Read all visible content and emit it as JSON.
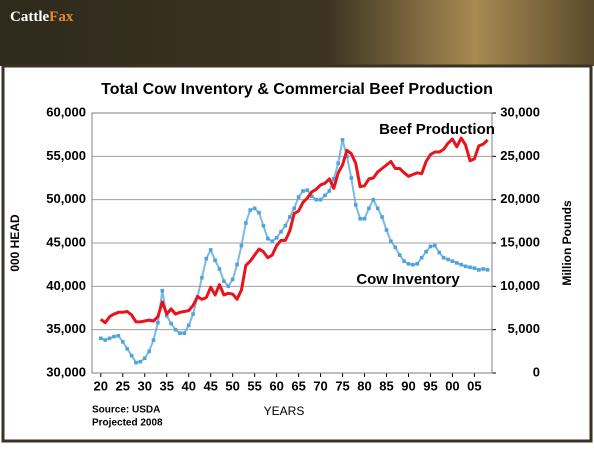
{
  "header": {
    "logo_main": "Cattle",
    "logo_accent": "Fax"
  },
  "chart_data": {
    "type": "line",
    "title": "Total Cow Inventory & Commercial Beef Production",
    "x_label": "YEARS",
    "y_label": "000 HEAD",
    "y2_label": "Million Pounds",
    "annotations": [
      "Source: USDA",
      "Projected 2008"
    ],
    "x": [
      1920,
      1921,
      1922,
      1923,
      1924,
      1925,
      1926,
      1927,
      1928,
      1929,
      1930,
      1931,
      1932,
      1933,
      1934,
      1935,
      1936,
      1937,
      1938,
      1939,
      1940,
      1941,
      1942,
      1943,
      1944,
      1945,
      1946,
      1947,
      1948,
      1949,
      1950,
      1951,
      1952,
      1953,
      1954,
      1955,
      1956,
      1957,
      1958,
      1959,
      1960,
      1961,
      1962,
      1963,
      1964,
      1965,
      1966,
      1967,
      1968,
      1969,
      1970,
      1971,
      1972,
      1973,
      1974,
      1975,
      1976,
      1977,
      1978,
      1979,
      1980,
      1981,
      1982,
      1983,
      1984,
      1985,
      1986,
      1987,
      1988,
      1989,
      1990,
      1991,
      1992,
      1993,
      1994,
      1995,
      1996,
      1997,
      1998,
      1999,
      2000,
      2001,
      2002,
      2003,
      2004,
      2005,
      2006,
      2007,
      2008
    ],
    "series": [
      {
        "name": "Cow Inventory",
        "color": "#4fa3dc",
        "marker": "square",
        "values": [
          34000,
          33800,
          34000,
          34200,
          34300,
          33600,
          32800,
          32000,
          31200,
          31300,
          31700,
          32500,
          33800,
          35800,
          39500,
          36600,
          35700,
          35000,
          34600,
          34600,
          35500,
          36800,
          38800,
          41000,
          43200,
          44200,
          43000,
          42000,
          40600,
          40000,
          40800,
          42500,
          44700,
          47300,
          48800,
          49000,
          48500,
          47000,
          45500,
          45200,
          45600,
          46300,
          47000,
          48000,
          49000,
          50300,
          51000,
          51100,
          50400,
          50000,
          50000,
          50500,
          51000,
          52400,
          54200,
          56900,
          55000,
          52500,
          49400,
          47800,
          47800,
          49000,
          50000,
          49000,
          48000,
          46500,
          45200,
          44500,
          43600,
          42900,
          42600,
          42500,
          42600,
          43300,
          44000,
          44600,
          44700,
          43900,
          43300,
          43100,
          42900,
          42700,
          42500,
          42300,
          42200,
          42100,
          41900,
          42000,
          41900
        ]
      },
      {
        "name": "Beef Production",
        "color": "#e8141c",
        "axis": "y2",
        "values": [
          6200,
          5800,
          6500,
          6800,
          7000,
          7000,
          7100,
          6700,
          5900,
          5900,
          6000,
          6100,
          6000,
          6500,
          8200,
          6800,
          7400,
          6800,
          7000,
          7100,
          7200,
          7800,
          8800,
          8500,
          8700,
          9900,
          9000,
          10200,
          9000,
          9200,
          9100,
          8500,
          9600,
          12400,
          12900,
          13600,
          14300,
          14000,
          13300,
          13600,
          14700,
          15300,
          15300,
          16400,
          18400,
          18700,
          19700,
          20200,
          20900,
          21200,
          21700,
          21900,
          22400,
          21300,
          23100,
          24000,
          25700,
          25300,
          24200,
          21500,
          21600,
          22400,
          22500,
          23200,
          23600,
          24000,
          24400,
          23600,
          23600,
          23100,
          22700,
          22900,
          23100,
          23000,
          24400,
          25200,
          25500,
          25500,
          25800,
          26500,
          27000,
          26100,
          27100,
          26300,
          24500,
          24700,
          26200,
          26400,
          26900
        ]
      }
    ],
    "xlim": [
      1918,
      2009
    ],
    "xticks": [
      {
        "value": 1920,
        "label": "20"
      },
      {
        "value": 1925,
        "label": "25"
      },
      {
        "value": 1930,
        "label": "30"
      },
      {
        "value": 1935,
        "label": "35"
      },
      {
        "value": 1940,
        "label": "40"
      },
      {
        "value": 1945,
        "label": "45"
      },
      {
        "value": 1950,
        "label": "50"
      },
      {
        "value": 1955,
        "label": "55"
      },
      {
        "value": 1960,
        "label": "60"
      },
      {
        "value": 1965,
        "label": "65"
      },
      {
        "value": 1970,
        "label": "70"
      },
      {
        "value": 1975,
        "label": "75"
      },
      {
        "value": 1980,
        "label": "80"
      },
      {
        "value": 1985,
        "label": "85"
      },
      {
        "value": 1990,
        "label": "90"
      },
      {
        "value": 1995,
        "label": "95"
      },
      {
        "value": 2000,
        "label": "00"
      },
      {
        "value": 2005,
        "label": "05"
      }
    ],
    "ylim": [
      30000,
      60000
    ],
    "yticks": [
      {
        "value": 30000,
        "label": "30,000"
      },
      {
        "value": 35000,
        "label": "35,000"
      },
      {
        "value": 40000,
        "label": "40,000"
      },
      {
        "value": 45000,
        "label": "45,000"
      },
      {
        "value": 50000,
        "label": "50,000"
      },
      {
        "value": 55000,
        "label": "55,000"
      },
      {
        "value": 60000,
        "label": "60,000"
      }
    ],
    "y2lim": [
      0,
      30000
    ],
    "y2ticks": [
      0,
      {
        "value": 5000,
        "label": "5,000"
      },
      {
        "value": 10000,
        "label": "10,000"
      },
      {
        "value": 15000,
        "label": "15,000"
      },
      {
        "value": 20000,
        "label": "20,000"
      },
      {
        "value": 25000,
        "label": "25,000"
      },
      {
        "value": 30000,
        "label": "30,000"
      }
    ],
    "grid": true
  }
}
